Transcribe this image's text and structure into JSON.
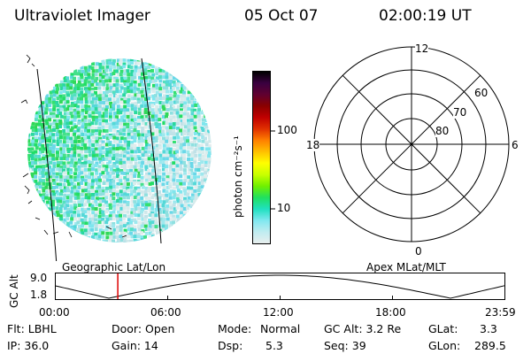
{
  "header": {
    "title": "Ultraviolet Imager",
    "date": "05 Oct 07",
    "time": "02:00:19 UT"
  },
  "colorbar": {
    "unit_label": "photon cm⁻²s⁻¹",
    "ticks": [
      "100",
      "10"
    ],
    "colors": [
      "#000000",
      "#3a0040",
      "#600030",
      "#8a0000",
      "#c00000",
      "#e03000",
      "#ff8000",
      "#ffc000",
      "#ffff00",
      "#c8ff00",
      "#70f000",
      "#20e060",
      "#20e0c0",
      "#80e8f0",
      "#c0ecf0",
      "#e8eeee"
    ]
  },
  "polar": {
    "mlt_labels": {
      "top": "12",
      "left": "18",
      "right": "6",
      "bottom": "0"
    },
    "lat_labels": [
      "60",
      "70",
      "80"
    ]
  },
  "map_labels": {
    "left": "Geographic Lat/Lon",
    "right": "Apex MLat/MLT"
  },
  "altitude_plot": {
    "ylabel": "GC Alt",
    "ytick_top": "9.0",
    "ytick_bottom": "1.8",
    "xticks": [
      "00:00",
      "06:00",
      "12:00",
      "18:00",
      "23:59"
    ],
    "current_time_fraction": 0.14,
    "marker_color": "#dd0000"
  },
  "info": {
    "row1": {
      "flt": "Flt: LBHL",
      "door": "Door: Open",
      "mode_label": "Mode:",
      "mode_value": "Normal",
      "gcalt": "GC Alt: 3.2 Re",
      "glat_label": "GLat:",
      "glat_value": "3.3"
    },
    "row2": {
      "ip": "IP: 36.0",
      "gain": "Gain: 14",
      "dsp_label": "Dsp:",
      "dsp_value": "5.3",
      "seq": "Seq: 39",
      "glon_label": "GLon:",
      "glon_value": "289.5"
    }
  }
}
